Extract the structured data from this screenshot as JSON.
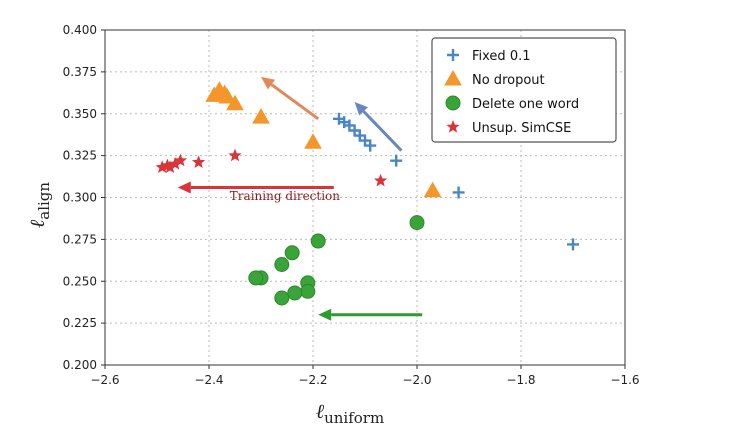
{
  "chart_data": {
    "type": "scatter",
    "title": "",
    "xlabel": {
      "main": "ℓ",
      "sub": "uniform"
    },
    "ylabel": {
      "main": "ℓ",
      "sub": "align"
    },
    "xlim": [
      -2.6,
      -1.6
    ],
    "ylim": [
      0.2,
      0.4
    ],
    "xticks": [
      -2.6,
      -2.4,
      -2.2,
      -2.0,
      -1.8,
      -1.6
    ],
    "yticks": [
      0.2,
      0.225,
      0.25,
      0.275,
      0.3,
      0.325,
      0.35,
      0.375,
      0.4
    ],
    "xtick_labels": [
      "−2.6",
      "−2.4",
      "−2.2",
      "−2.0",
      "−1.8",
      "−1.6"
    ],
    "ytick_labels": [
      "0.200",
      "0.225",
      "0.250",
      "0.275",
      "0.300",
      "0.325",
      "0.350",
      "0.375",
      "0.400"
    ],
    "grid": true,
    "legend_position": "top-right",
    "series": [
      {
        "name": "Fixed 0.1",
        "marker": "plus",
        "color": "#4a86c6",
        "points": [
          {
            "x": -2.15,
            "y": 0.347
          },
          {
            "x": -2.14,
            "y": 0.345
          },
          {
            "x": -2.13,
            "y": 0.343
          },
          {
            "x": -2.12,
            "y": 0.34
          },
          {
            "x": -2.11,
            "y": 0.337
          },
          {
            "x": -2.1,
            "y": 0.334
          },
          {
            "x": -2.09,
            "y": 0.331
          },
          {
            "x": -2.04,
            "y": 0.322
          },
          {
            "x": -1.92,
            "y": 0.303
          },
          {
            "x": -1.7,
            "y": 0.272
          }
        ]
      },
      {
        "name": "No dropout",
        "marker": "triangle",
        "color": "#f5962a",
        "points": [
          {
            "x": -2.39,
            "y": 0.361
          },
          {
            "x": -2.38,
            "y": 0.364
          },
          {
            "x": -2.37,
            "y": 0.362
          },
          {
            "x": -2.365,
            "y": 0.36
          },
          {
            "x": -2.35,
            "y": 0.356
          },
          {
            "x": -2.3,
            "y": 0.348
          },
          {
            "x": -2.2,
            "y": 0.333
          },
          {
            "x": -1.97,
            "y": 0.304
          }
        ]
      },
      {
        "name": "Delete one word",
        "marker": "circle",
        "color": "#3aa43a",
        "points": [
          {
            "x": -2.0,
            "y": 0.285
          },
          {
            "x": -2.19,
            "y": 0.274
          },
          {
            "x": -2.24,
            "y": 0.267
          },
          {
            "x": -2.26,
            "y": 0.26
          },
          {
            "x": -2.3,
            "y": 0.252
          },
          {
            "x": -2.31,
            "y": 0.252
          },
          {
            "x": -2.21,
            "y": 0.249
          },
          {
            "x": -2.21,
            "y": 0.244
          },
          {
            "x": -2.235,
            "y": 0.243
          },
          {
            "x": -2.26,
            "y": 0.24
          }
        ]
      },
      {
        "name": "Unsup. SimCSE",
        "marker": "star",
        "color": "#d9343a",
        "points": [
          {
            "x": -2.49,
            "y": 0.318
          },
          {
            "x": -2.48,
            "y": 0.319
          },
          {
            "x": -2.475,
            "y": 0.318
          },
          {
            "x": -2.465,
            "y": 0.32
          },
          {
            "x": -2.455,
            "y": 0.322
          },
          {
            "x": -2.42,
            "y": 0.321
          },
          {
            "x": -2.35,
            "y": 0.325
          },
          {
            "x": -2.07,
            "y": 0.31
          }
        ]
      }
    ],
    "arrows": [
      {
        "color": "#e08a5a",
        "from": {
          "x": -2.19,
          "y": 0.347
        },
        "to": {
          "x": -2.3,
          "y": 0.372
        }
      },
      {
        "color": "#6688c0",
        "from": {
          "x": -2.03,
          "y": 0.328
        },
        "to": {
          "x": -2.12,
          "y": 0.357
        }
      },
      {
        "color": "#d9343a",
        "from": {
          "x": -2.16,
          "y": 0.306
        },
        "to": {
          "x": -2.46,
          "y": 0.306
        }
      },
      {
        "color": "#2e9a2e",
        "from": {
          "x": -1.99,
          "y": 0.23
        },
        "to": {
          "x": -2.19,
          "y": 0.23
        }
      }
    ],
    "annotations": [
      {
        "text": "Training direction",
        "x": -2.36,
        "y": 0.2985,
        "color": "#8b1a1a"
      }
    ]
  }
}
